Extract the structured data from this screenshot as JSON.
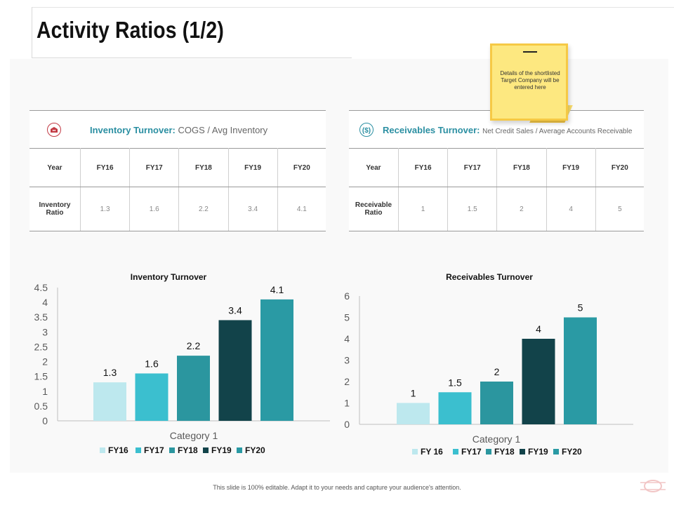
{
  "title": "Activity Ratios (1/2)",
  "sticky_note": {
    "text": "Details of the shortlisted Target Company will be entered here"
  },
  "inventory_table": {
    "heading_bold": "Inventory Turnover",
    "heading_colon": ":",
    "heading_formula": "COGS / Avg Inventory",
    "icon": "warehouse-icon",
    "columns": [
      "Year",
      "FY16",
      "FY17",
      "FY18",
      "FY19",
      "FY20"
    ],
    "row": {
      "label_line1": "Inventory",
      "label_line2": "Ratio",
      "values": [
        "1.3",
        "1.6",
        "2.2",
        "3.4",
        "4.1"
      ]
    }
  },
  "receivables_table": {
    "heading_bold": "Receivables Turnover",
    "heading_colon": ":",
    "heading_formula": "Net Credit Sales / Average Accounts Receivable",
    "icon": "dollar-icon",
    "columns": [
      "Year",
      "FY16",
      "FY17",
      "FY18",
      "FY19",
      "FY20"
    ],
    "row": {
      "label_line1": "Receivable",
      "label_line2": "Ratio",
      "values": [
        "1",
        "1.5",
        "2",
        "4",
        "5"
      ]
    }
  },
  "chart_data": [
    {
      "type": "bar",
      "title": "Inventory Turnover",
      "categories": [
        "Category 1"
      ],
      "xlabel": "Category 1",
      "series": [
        {
          "name": "FY16",
          "values": [
            1.3
          ],
          "color": "#bde8ee"
        },
        {
          "name": "FY17",
          "values": [
            1.6
          ],
          "color": "#3bbfcf"
        },
        {
          "name": "FY18",
          "values": [
            2.2
          ],
          "color": "#2b969f"
        },
        {
          "name": "FY19",
          "values": [
            3.4
          ],
          "color": "#12434a"
        },
        {
          "name": "FY20",
          "values": [
            4.1
          ],
          "color": "#2a9aa4"
        }
      ],
      "data_labels": [
        "1.3",
        "1.6",
        "2.2",
        "3.4",
        "4.1"
      ],
      "yticks": [
        "0",
        "0.5",
        "1",
        "1.5",
        "2",
        "2.5",
        "3",
        "3.5",
        "4",
        "4.5"
      ],
      "ylim": [
        0,
        4.5
      ],
      "legend": [
        "FY16",
        "FY17",
        "FY18",
        "FY19",
        "FY20"
      ]
    },
    {
      "type": "bar",
      "title": "Receivables Turnover",
      "categories": [
        "Category 1"
      ],
      "xlabel": "Category 1",
      "series": [
        {
          "name": "FY 16",
          "values": [
            1
          ],
          "color": "#bde8ee"
        },
        {
          "name": "FY17",
          "values": [
            1.5
          ],
          "color": "#3bbfcf"
        },
        {
          "name": "FY18",
          "values": [
            2
          ],
          "color": "#2b969f"
        },
        {
          "name": "FY19",
          "values": [
            4
          ],
          "color": "#12434a"
        },
        {
          "name": "FY20",
          "values": [
            5
          ],
          "color": "#2a9aa4"
        }
      ],
      "data_labels": [
        "1",
        "1.5",
        "2",
        "4",
        "5"
      ],
      "yticks": [
        "0",
        "1",
        "2",
        "3",
        "4",
        "5",
        "6"
      ],
      "ylim": [
        0,
        6
      ],
      "legend": [
        "FY 16",
        "FY17",
        "FY18",
        "FY19",
        "FY20"
      ]
    }
  ],
  "footer": "This slide is 100% editable. Adapt it to your needs and capture your audience's attention."
}
